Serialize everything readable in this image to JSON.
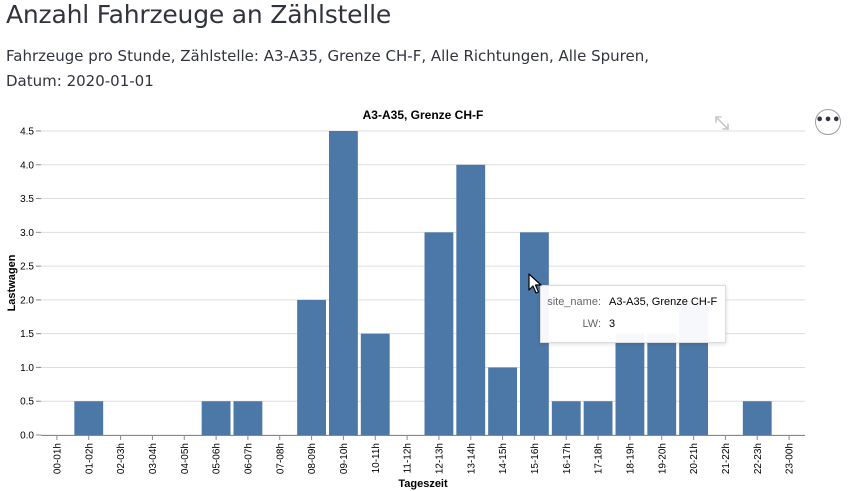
{
  "page": {
    "title": "Anzahl Fahrzeuge an Zählstelle",
    "subtitle": "Fahrzeuge pro Stunde, Zählstelle: A3-A35, Grenze CH-F, Alle Richtungen, Alle Spuren, Datum: 2020-01-01"
  },
  "toolbar": {
    "expand_icon": "expand-arrows-icon",
    "menu_icon": "more-horizontal-icon",
    "menu_label": "•••"
  },
  "tooltip": {
    "rows": [
      {
        "key": "site_name:",
        "value": "A3-A35, Grenze CH-F"
      },
      {
        "key": "LW:",
        "value": "3"
      }
    ]
  },
  "chart_data": {
    "type": "bar",
    "title": "A3-A35, Grenze CH-F",
    "xlabel": "Tageszeit",
    "ylabel": "Lastwagen",
    "ylim": [
      0,
      4.5
    ],
    "yticks": [
      "0.0",
      "0.5",
      "1.0",
      "1.5",
      "2.0",
      "2.5",
      "3.0",
      "3.5",
      "4.0",
      "4.5"
    ],
    "grid": true,
    "bar_color": "#4c78a8",
    "categories": [
      "00-01h",
      "01-02h",
      "02-03h",
      "03-04h",
      "04-05h",
      "05-06h",
      "06-07h",
      "07-08h",
      "08-09h",
      "09-10h",
      "10-11h",
      "11-12h",
      "12-13h",
      "13-14h",
      "14-15h",
      "15-16h",
      "16-17h",
      "17-18h",
      "18-19h",
      "19-20h",
      "20-21h",
      "21-22h",
      "22-23h",
      "23-00h"
    ],
    "values": [
      0,
      0.5,
      0,
      0,
      0,
      0.5,
      0.5,
      0,
      2,
      4.5,
      1.5,
      0,
      3,
      4,
      1,
      3,
      0.5,
      0.5,
      1.5,
      1.5,
      2,
      0,
      0.5,
      0
    ]
  }
}
